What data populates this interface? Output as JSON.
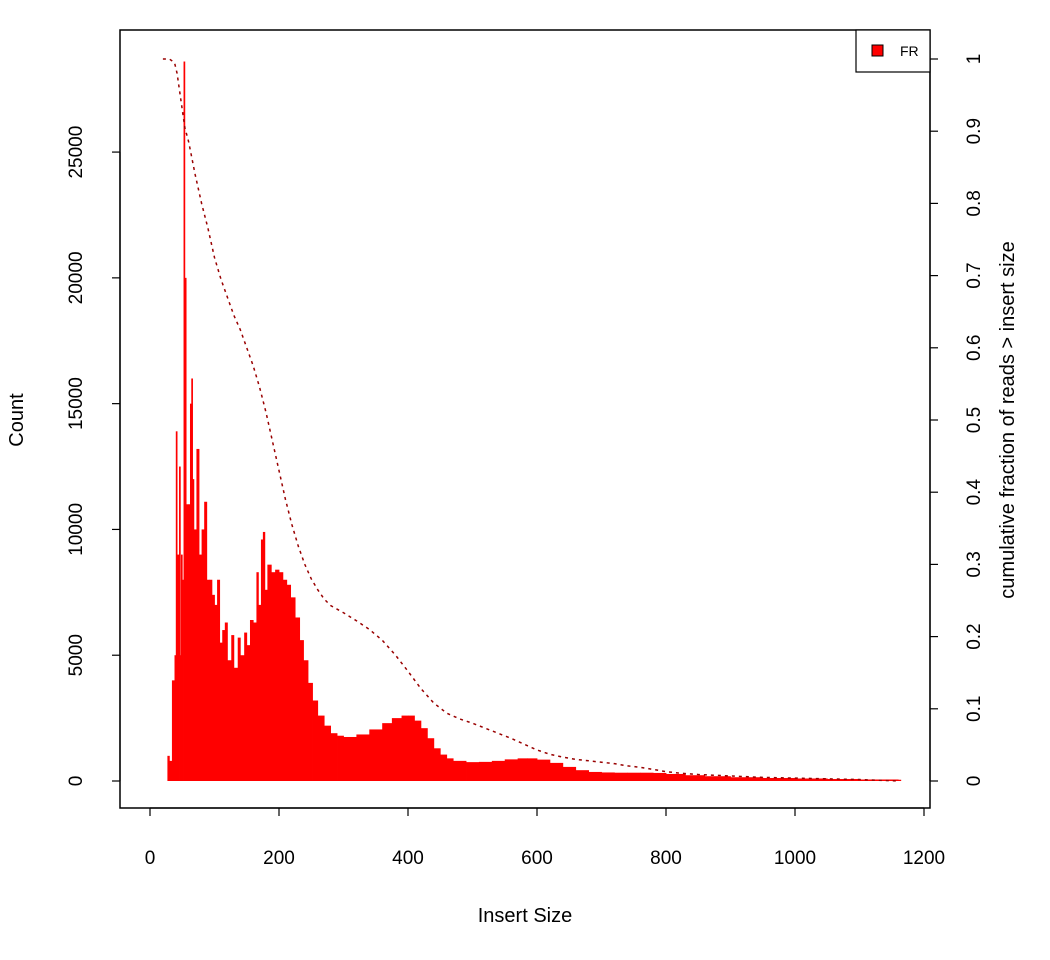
{
  "chart_data": {
    "type": "histogram",
    "xlabel": "Insert Size",
    "ylabel": "Count",
    "y2label": "cumulative fraction of reads > insert size",
    "xlim": [
      0,
      1200
    ],
    "ylim": [
      0,
      28700
    ],
    "y2lim": [
      0,
      1
    ],
    "xticks": [
      "0",
      "200",
      "400",
      "600",
      "800",
      "1000",
      "1200"
    ],
    "yticks": [
      "0",
      "5000",
      "10000",
      "15000",
      "20000",
      "25000"
    ],
    "y2ticks": [
      "0",
      "0.1",
      "0.2",
      "0.3",
      "0.4",
      "0.5",
      "0.6",
      "0.7",
      "0.8",
      "0.9",
      "1"
    ],
    "grid": false,
    "legend": {
      "position": "top-right",
      "entries": [
        {
          "label": "FR",
          "color": "#ff0000"
        }
      ]
    },
    "series": [
      {
        "name": "FR",
        "kind": "histogram",
        "color": "#ff0000",
        "points": [
          [
            20,
            0
          ],
          [
            27,
            1000
          ],
          [
            30,
            800
          ],
          [
            34,
            4000
          ],
          [
            38,
            5000
          ],
          [
            40,
            13900
          ],
          [
            42,
            9000
          ],
          [
            45,
            12500
          ],
          [
            47,
            5000
          ],
          [
            48,
            9000
          ],
          [
            50,
            8000
          ],
          [
            52,
            28600
          ],
          [
            54,
            20000
          ],
          [
            56,
            11000
          ],
          [
            60,
            11000
          ],
          [
            62,
            15000
          ],
          [
            64,
            16000
          ],
          [
            66,
            12000
          ],
          [
            68,
            10000
          ],
          [
            72,
            13200
          ],
          [
            76,
            9000
          ],
          [
            80,
            10000
          ],
          [
            84,
            11100
          ],
          [
            88,
            8000
          ],
          [
            92,
            8000
          ],
          [
            96,
            7400
          ],
          [
            100,
            7000
          ],
          [
            104,
            8000
          ],
          [
            108,
            5500
          ],
          [
            112,
            6000
          ],
          [
            116,
            6300
          ],
          [
            120,
            4800
          ],
          [
            126,
            5800
          ],
          [
            130,
            4500
          ],
          [
            136,
            5700
          ],
          [
            140,
            5000
          ],
          [
            146,
            5900
          ],
          [
            150,
            5400
          ],
          [
            155,
            6400
          ],
          [
            160,
            6300
          ],
          [
            165,
            8300
          ],
          [
            168,
            7000
          ],
          [
            172,
            9600
          ],
          [
            175,
            9900
          ],
          [
            178,
            7600
          ],
          [
            182,
            8600
          ],
          [
            188,
            8300
          ],
          [
            194,
            8400
          ],
          [
            200,
            8300
          ],
          [
            206,
            8000
          ],
          [
            212,
            7800
          ],
          [
            218,
            7300
          ],
          [
            225,
            6500
          ],
          [
            232,
            5600
          ],
          [
            238,
            4800
          ],
          [
            245,
            3900
          ],
          [
            252,
            3200
          ],
          [
            260,
            2600
          ],
          [
            270,
            2200
          ],
          [
            280,
            1900
          ],
          [
            290,
            1800
          ],
          [
            300,
            1750
          ],
          [
            320,
            1850
          ],
          [
            340,
            2050
          ],
          [
            360,
            2300
          ],
          [
            375,
            2500
          ],
          [
            390,
            2600
          ],
          [
            400,
            2600
          ],
          [
            410,
            2400
          ],
          [
            420,
            2100
          ],
          [
            430,
            1700
          ],
          [
            440,
            1300
          ],
          [
            450,
            1050
          ],
          [
            460,
            900
          ],
          [
            470,
            800
          ],
          [
            490,
            750
          ],
          [
            510,
            760
          ],
          [
            530,
            800
          ],
          [
            550,
            860
          ],
          [
            570,
            900
          ],
          [
            585,
            900
          ],
          [
            600,
            850
          ],
          [
            620,
            720
          ],
          [
            640,
            560
          ],
          [
            660,
            430
          ],
          [
            680,
            360
          ],
          [
            700,
            340
          ],
          [
            720,
            330
          ],
          [
            740,
            330
          ],
          [
            760,
            330
          ],
          [
            780,
            320
          ],
          [
            800,
            280
          ],
          [
            830,
            230
          ],
          [
            860,
            190
          ],
          [
            900,
            150
          ],
          [
            950,
            120
          ],
          [
            1000,
            100
          ],
          [
            1050,
            80
          ],
          [
            1100,
            60
          ],
          [
            1160,
            50
          ]
        ]
      },
      {
        "name": "",
        "kind": "cumulative",
        "color": "#990000",
        "points": [
          [
            20,
            1
          ],
          [
            30,
            1
          ],
          [
            38,
            0.995
          ],
          [
            42,
            0.98
          ],
          [
            46,
            0.955
          ],
          [
            50,
            0.93
          ],
          [
            54,
            0.905
          ],
          [
            60,
            0.885
          ],
          [
            70,
            0.84
          ],
          [
            80,
            0.8
          ],
          [
            90,
            0.765
          ],
          [
            100,
            0.725
          ],
          [
            110,
            0.695
          ],
          [
            120,
            0.67
          ],
          [
            130,
            0.645
          ],
          [
            140,
            0.625
          ],
          [
            150,
            0.6
          ],
          [
            160,
            0.575
          ],
          [
            170,
            0.545
          ],
          [
            180,
            0.51
          ],
          [
            190,
            0.47
          ],
          [
            200,
            0.43
          ],
          [
            210,
            0.39
          ],
          [
            220,
            0.355
          ],
          [
            230,
            0.325
          ],
          [
            240,
            0.3
          ],
          [
            250,
            0.28
          ],
          [
            260,
            0.265
          ],
          [
            270,
            0.252
          ],
          [
            280,
            0.243
          ],
          [
            300,
            0.233
          ],
          [
            320,
            0.222
          ],
          [
            340,
            0.21
          ],
          [
            360,
            0.195
          ],
          [
            380,
            0.175
          ],
          [
            400,
            0.152
          ],
          [
            420,
            0.128
          ],
          [
            440,
            0.108
          ],
          [
            460,
            0.094
          ],
          [
            480,
            0.086
          ],
          [
            500,
            0.08
          ],
          [
            520,
            0.073
          ],
          [
            540,
            0.066
          ],
          [
            560,
            0.059
          ],
          [
            580,
            0.051
          ],
          [
            600,
            0.043
          ],
          [
            620,
            0.037
          ],
          [
            640,
            0.033
          ],
          [
            660,
            0.03
          ],
          [
            680,
            0.028
          ],
          [
            700,
            0.026
          ],
          [
            720,
            0.024
          ],
          [
            740,
            0.021
          ],
          [
            760,
            0.019
          ],
          [
            780,
            0.016
          ],
          [
            800,
            0.013
          ],
          [
            820,
            0.011
          ],
          [
            850,
            0.009
          ],
          [
            900,
            0.007
          ],
          [
            950,
            0.005
          ],
          [
            1000,
            0.004
          ],
          [
            1050,
            0.003
          ],
          [
            1100,
            0.002
          ],
          [
            1160,
            0
          ]
        ]
      }
    ]
  }
}
